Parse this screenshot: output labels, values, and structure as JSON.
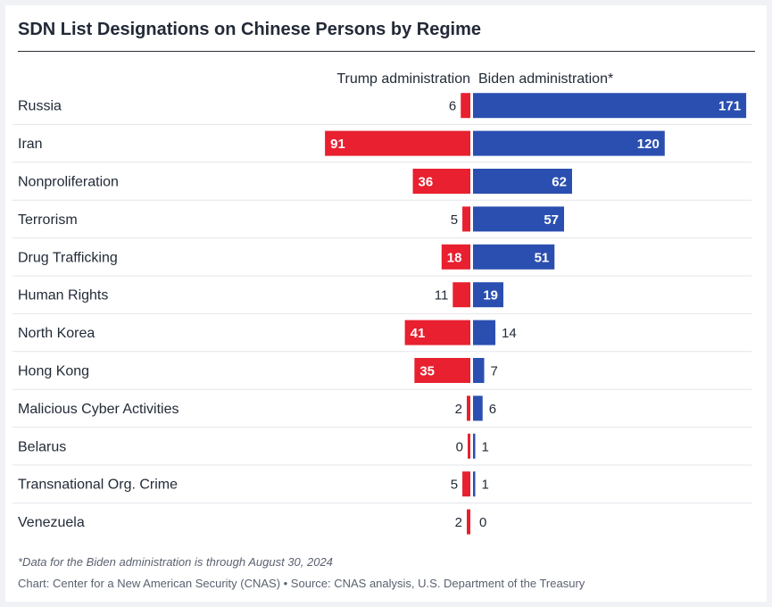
{
  "chart_data": {
    "type": "bar",
    "orientation": "horizontal-diverging",
    "title": "SDN List Designations on Chinese Persons by Regime",
    "categories": [
      "Russia",
      "Iran",
      "Nonproliferation",
      "Terrorism",
      "Drug Trafficking",
      "Human Rights",
      "North Korea",
      "Hong Kong",
      "Malicious Cyber Activities",
      "Belarus",
      "Transnational Org. Crime",
      "Venezuela"
    ],
    "series": [
      {
        "name": "Trump administration",
        "color": "#e8202f",
        "direction": "left",
        "values": [
          6,
          91,
          36,
          5,
          18,
          11,
          41,
          35,
          2,
          0,
          5,
          2
        ]
      },
      {
        "name": "Biden administration*",
        "color": "#2b4fb0",
        "direction": "right",
        "values": [
          171,
          120,
          62,
          57,
          51,
          19,
          14,
          7,
          6,
          1,
          1,
          0
        ]
      }
    ],
    "grid": false,
    "legend": "top, as column headers"
  },
  "footnote": "*Data for the Biden administration is through August 30, 2024",
  "source": "Chart: Center for a New American Security (CNAS) • Source: CNAS analysis, U.S. Department of the Treasury"
}
